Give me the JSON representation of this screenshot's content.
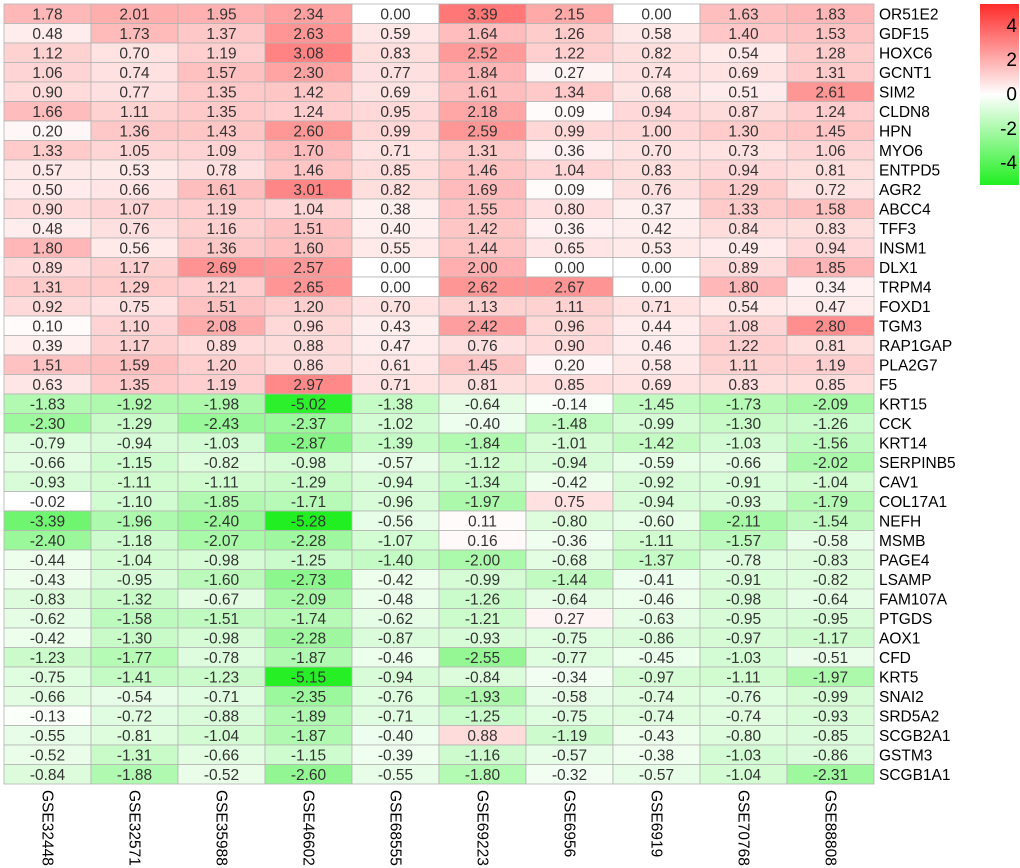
{
  "chart_data": {
    "type": "heatmap",
    "columns": [
      "GSE32448",
      "GSE32571",
      "GSE35988",
      "GSE46602",
      "GSE68555",
      "GSE69223",
      "GSE6956",
      "GSE6919",
      "GSE70768",
      "GSE88808"
    ],
    "rows": [
      "OR51E2",
      "GDF15",
      "HOXC6",
      "GCNT1",
      "SIM2",
      "CLDN8",
      "HPN",
      "MYO6",
      "ENTPD5",
      "AGR2",
      "ABCC4",
      "TFF3",
      "INSM1",
      "DLX1",
      "TRPM4",
      "FOXD1",
      "TGM3",
      "RAP1GAP",
      "PLA2G7",
      "F5",
      "KRT15",
      "CCK",
      "KRT14",
      "SERPINB5",
      "CAV1",
      "COL17A1",
      "NEFH",
      "MSMB",
      "PAGE4",
      "LSAMP",
      "FAM107A",
      "PTGDS",
      "AOX1",
      "CFD",
      "KRT5",
      "SNAI2",
      "SRD5A2",
      "SCGB2A1",
      "GSTM3",
      "SCGB1A1"
    ],
    "values": [
      [
        "1.78",
        "2.01",
        "1.95",
        "2.34",
        "0.00",
        "3.39",
        "2.15",
        "0.00",
        "1.63",
        "1.83"
      ],
      [
        "0.48",
        "1.73",
        "1.37",
        "2.63",
        "0.59",
        "1.64",
        "1.26",
        "0.58",
        "1.40",
        "1.53"
      ],
      [
        "1.12",
        "0.70",
        "1.19",
        "3.08",
        "0.83",
        "2.52",
        "1.22",
        "0.82",
        "0.54",
        "1.28"
      ],
      [
        "1.06",
        "0.74",
        "1.57",
        "2.30",
        "0.77",
        "1.84",
        "0.27",
        "0.74",
        "0.69",
        "1.31"
      ],
      [
        "0.90",
        "0.77",
        "1.35",
        "1.42",
        "0.69",
        "1.61",
        "1.34",
        "0.68",
        "0.51",
        "2.61"
      ],
      [
        "1.66",
        "1.11",
        "1.35",
        "1.24",
        "0.95",
        "2.18",
        "0.09",
        "0.94",
        "0.87",
        "1.24"
      ],
      [
        "0.20",
        "1.36",
        "1.43",
        "2.60",
        "0.99",
        "2.59",
        "0.99",
        "1.00",
        "1.30",
        "1.45"
      ],
      [
        "1.33",
        "1.05",
        "1.09",
        "1.70",
        "0.71",
        "1.31",
        "0.36",
        "0.70",
        "0.73",
        "1.06"
      ],
      [
        "0.57",
        "0.53",
        "0.78",
        "1.46",
        "0.85",
        "1.46",
        "1.04",
        "0.83",
        "0.94",
        "0.81"
      ],
      [
        "0.50",
        "0.66",
        "1.61",
        "3.01",
        "0.82",
        "1.69",
        "0.09",
        "0.76",
        "1.29",
        "0.72"
      ],
      [
        "0.90",
        "1.07",
        "1.19",
        "1.04",
        "0.38",
        "1.55",
        "0.80",
        "0.37",
        "1.33",
        "1.58"
      ],
      [
        "0.48",
        "0.76",
        "1.16",
        "1.51",
        "0.40",
        "1.42",
        "0.36",
        "0.42",
        "0.84",
        "0.83"
      ],
      [
        "1.80",
        "0.56",
        "1.36",
        "1.60",
        "0.55",
        "1.44",
        "0.65",
        "0.53",
        "0.49",
        "0.94"
      ],
      [
        "0.89",
        "1.17",
        "2.69",
        "2.57",
        "0.00",
        "2.00",
        "0.00",
        "0.00",
        "0.89",
        "1.85"
      ],
      [
        "1.31",
        "1.29",
        "1.21",
        "2.65",
        "0.00",
        "2.62",
        "2.67",
        "0.00",
        "1.80",
        "0.34"
      ],
      [
        "0.92",
        "0.75",
        "1.51",
        "1.20",
        "0.70",
        "1.13",
        "1.11",
        "0.71",
        "0.54",
        "0.47"
      ],
      [
        "0.10",
        "1.10",
        "2.08",
        "0.96",
        "0.43",
        "2.42",
        "0.96",
        "0.44",
        "1.08",
        "2.80"
      ],
      [
        "0.39",
        "1.17",
        "0.89",
        "0.88",
        "0.47",
        "0.76",
        "0.90",
        "0.46",
        "1.22",
        "0.81"
      ],
      [
        "1.51",
        "1.59",
        "1.20",
        "0.86",
        "0.61",
        "1.45",
        "0.20",
        "0.58",
        "1.11",
        "1.19"
      ],
      [
        "0.63",
        "1.35",
        "1.19",
        "2.97",
        "0.71",
        "0.81",
        "0.85",
        "0.69",
        "0.83",
        "0.85"
      ],
      [
        "-1.83",
        "-1.92",
        "-1.98",
        "-5.02",
        "-1.38",
        "-0.64",
        "-0.14",
        "-1.45",
        "-1.73",
        "-2.09"
      ],
      [
        "-2.30",
        "-1.29",
        "-2.43",
        "-2.37",
        "-1.02",
        "-0.40",
        "-1.48",
        "-0.99",
        "-1.30",
        "-1.26"
      ],
      [
        "-0.79",
        "-0.94",
        "-1.03",
        "-2.87",
        "-1.39",
        "-1.84",
        "-1.01",
        "-1.42",
        "-1.03",
        "-1.56"
      ],
      [
        "-0.66",
        "-1.15",
        "-0.82",
        "-0.98",
        "-0.57",
        "-1.12",
        "-0.94",
        "-0.59",
        "-0.66",
        "-2.02"
      ],
      [
        "-0.93",
        "-1.11",
        "-1.11",
        "-1.29",
        "-0.94",
        "-1.34",
        "-0.42",
        "-0.92",
        "-0.91",
        "-1.04"
      ],
      [
        "-0.02",
        "-1.10",
        "-1.85",
        "-1.71",
        "-0.96",
        "-1.97",
        "0.75",
        "-0.94",
        "-0.93",
        "-1.79"
      ],
      [
        "-3.39",
        "-1.96",
        "-2.40",
        "-5.28",
        "-0.56",
        "0.11",
        "-0.80",
        "-0.60",
        "-2.11",
        "-1.54"
      ],
      [
        "-2.40",
        "-1.18",
        "-2.07",
        "-2.28",
        "-1.07",
        "0.16",
        "-0.36",
        "-1.11",
        "-1.57",
        "-0.58"
      ],
      [
        "-0.44",
        "-1.04",
        "-0.98",
        "-1.25",
        "-1.40",
        "-2.00",
        "-0.68",
        "-1.37",
        "-0.78",
        "-0.83"
      ],
      [
        "-0.43",
        "-0.95",
        "-1.60",
        "-2.73",
        "-0.42",
        "-0.99",
        "-1.44",
        "-0.41",
        "-0.91",
        "-0.82"
      ],
      [
        "-0.83",
        "-1.32",
        "-0.67",
        "-2.09",
        "-0.48",
        "-1.26",
        "-0.64",
        "-0.46",
        "-0.98",
        "-0.64"
      ],
      [
        "-0.62",
        "-1.58",
        "-1.51",
        "-1.74",
        "-0.62",
        "-1.21",
        "0.27",
        "-0.63",
        "-0.95",
        "-0.95"
      ],
      [
        "-0.42",
        "-1.30",
        "-0.98",
        "-2.28",
        "-0.87",
        "-0.93",
        "-0.75",
        "-0.86",
        "-0.97",
        "-1.17"
      ],
      [
        "-1.23",
        "-1.77",
        "-0.78",
        "-1.87",
        "-0.46",
        "-2.55",
        "-0.77",
        "-0.45",
        "-1.03",
        "-0.51"
      ],
      [
        "-0.75",
        "-1.41",
        "-1.23",
        "-5.15",
        "-0.94",
        "-0.84",
        "-0.34",
        "-0.97",
        "-1.11",
        "-1.97"
      ],
      [
        "-0.66",
        "-0.54",
        "-0.71",
        "-2.35",
        "-0.76",
        "-1.93",
        "-0.58",
        "-0.74",
        "-0.76",
        "-0.99"
      ],
      [
        "-0.13",
        "-0.72",
        "-0.88",
        "-1.89",
        "-0.71",
        "-1.25",
        "-0.75",
        "-0.74",
        "-0.74",
        "-0.93"
      ],
      [
        "-0.55",
        "-0.81",
        "-1.04",
        "-1.87",
        "-0.40",
        "0.88",
        "-1.19",
        "-0.43",
        "-0.80",
        "-0.85"
      ],
      [
        "-0.52",
        "-1.31",
        "-0.66",
        "-1.15",
        "-0.39",
        "-1.16",
        "-0.57",
        "-0.38",
        "-1.03",
        "-0.86"
      ],
      [
        "-0.84",
        "-1.88",
        "-0.52",
        "-2.60",
        "-0.55",
        "-1.80",
        "-0.32",
        "-0.57",
        "-1.04",
        "-2.31"
      ]
    ],
    "colorbar": {
      "ticks": [
        "4",
        "2",
        "0",
        "-2",
        "-4"
      ],
      "range": [
        -5.28,
        5.28
      ]
    },
    "colors": {
      "high": "#ff2b2b",
      "mid": "#ffffff",
      "low": "#21ef21",
      "border": "#b4b4b4",
      "text": "#333333"
    }
  }
}
